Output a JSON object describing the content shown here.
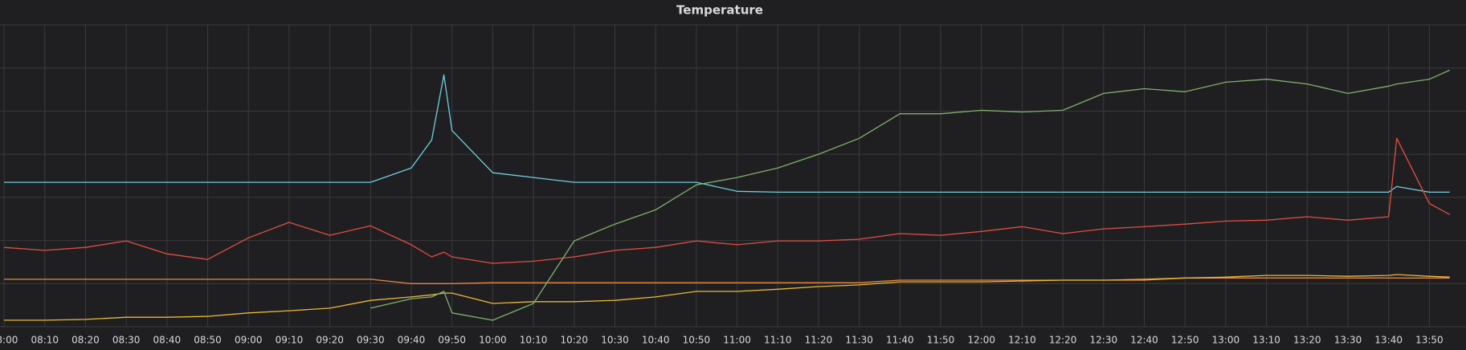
{
  "chart_data": {
    "type": "line",
    "title": "Temperature",
    "x": [
      "08:00",
      "08:10",
      "08:20",
      "08:30",
      "08:40",
      "08:50",
      "09:00",
      "09:10",
      "09:20",
      "09:30",
      "09:40",
      "09:45",
      "09:48",
      "09:50",
      "10:00",
      "10:10",
      "10:20",
      "10:30",
      "10:40",
      "10:50",
      "11:00",
      "11:10",
      "11:20",
      "11:30",
      "11:40",
      "11:50",
      "12:00",
      "12:10",
      "12:20",
      "12:30",
      "12:40",
      "12:50",
      "13:00",
      "13:10",
      "13:20",
      "13:30",
      "13:40",
      "13:42",
      "13:50",
      "13:55"
    ],
    "xlim": [
      "07:59",
      "13:59"
    ],
    "xticks": [
      "08:00",
      "08:10",
      "08:20",
      "08:30",
      "08:40",
      "08:50",
      "09:00",
      "09:10",
      "09:20",
      "09:30",
      "09:40",
      "09:50",
      "10:00",
      "10:10",
      "10:20",
      "10:30",
      "10:40",
      "10:50",
      "11:00",
      "11:10",
      "11:20",
      "11:30",
      "11:40",
      "11:50",
      "12:00",
      "12:10",
      "12:20",
      "12:30",
      "12:40",
      "12:50",
      "13:00",
      "13:10",
      "13:20",
      "13:30",
      "13:40",
      "13:50"
    ],
    "ylim": [
      0,
      7
    ],
    "ygrid": [
      0,
      1,
      2,
      3,
      4,
      5,
      6,
      7
    ],
    "grid": true,
    "series": [
      {
        "color": "#6ed0e0",
        "values": [
          3.35,
          3.35,
          3.35,
          3.35,
          3.35,
          3.35,
          3.35,
          3.35,
          3.35,
          3.35,
          3.68,
          4.33,
          5.84,
          4.55,
          3.57,
          3.46,
          3.35,
          3.35,
          3.35,
          3.35,
          3.14,
          3.12,
          3.12,
          3.12,
          3.12,
          3.12,
          3.12,
          3.12,
          3.12,
          3.12,
          3.12,
          3.12,
          3.12,
          3.12,
          3.12,
          3.12,
          3.12,
          3.25,
          3.12,
          3.12
        ]
      },
      {
        "color": "#e24d42",
        "values": [
          1.84,
          1.77,
          1.84,
          1.99,
          1.69,
          1.56,
          2.06,
          2.42,
          2.12,
          2.34,
          1.9,
          1.62,
          1.73,
          1.62,
          1.47,
          1.52,
          1.62,
          1.77,
          1.84,
          1.99,
          1.9,
          1.99,
          1.99,
          2.03,
          2.16,
          2.12,
          2.21,
          2.32,
          2.16,
          2.27,
          2.32,
          2.38,
          2.45,
          2.47,
          2.55,
          2.47,
          2.55,
          4.37,
          2.86,
          2.6
        ]
      },
      {
        "color": "#ef843c",
        "values": [
          1.1,
          1.1,
          1.1,
          1.1,
          1.1,
          1.1,
          1.1,
          1.1,
          1.1,
          1.1,
          1.0,
          1.0,
          1.0,
          1.0,
          1.02,
          1.02,
          1.02,
          1.02,
          1.02,
          1.02,
          1.02,
          1.02,
          1.02,
          1.02,
          1.08,
          1.08,
          1.08,
          1.08,
          1.08,
          1.08,
          1.08,
          1.13,
          1.13,
          1.13,
          1.13,
          1.13,
          1.13,
          1.13,
          1.13,
          1.13
        ]
      },
      {
        "color": "#eab839",
        "values": [
          0.15,
          0.15,
          0.17,
          0.22,
          0.22,
          0.24,
          0.32,
          0.37,
          0.43,
          0.61,
          0.69,
          0.74,
          0.78,
          0.78,
          0.54,
          0.58,
          0.58,
          0.61,
          0.69,
          0.82,
          0.82,
          0.87,
          0.93,
          0.97,
          1.04,
          1.04,
          1.04,
          1.06,
          1.08,
          1.08,
          1.1,
          1.13,
          1.15,
          1.19,
          1.19,
          1.17,
          1.19,
          1.21,
          1.17,
          1.15
        ]
      },
      {
        "color": "#7eb26d",
        "values": [
          null,
          null,
          null,
          null,
          null,
          null,
          null,
          null,
          null,
          0.43,
          0.65,
          0.69,
          0.82,
          0.32,
          0.15,
          0.54,
          1.99,
          2.38,
          2.71,
          3.29,
          3.46,
          3.68,
          4.0,
          4.37,
          4.94,
          4.94,
          5.02,
          4.98,
          5.02,
          5.41,
          5.52,
          5.45,
          5.67,
          5.74,
          5.63,
          5.41,
          5.58,
          5.63,
          5.74,
          5.95
        ]
      }
    ]
  }
}
